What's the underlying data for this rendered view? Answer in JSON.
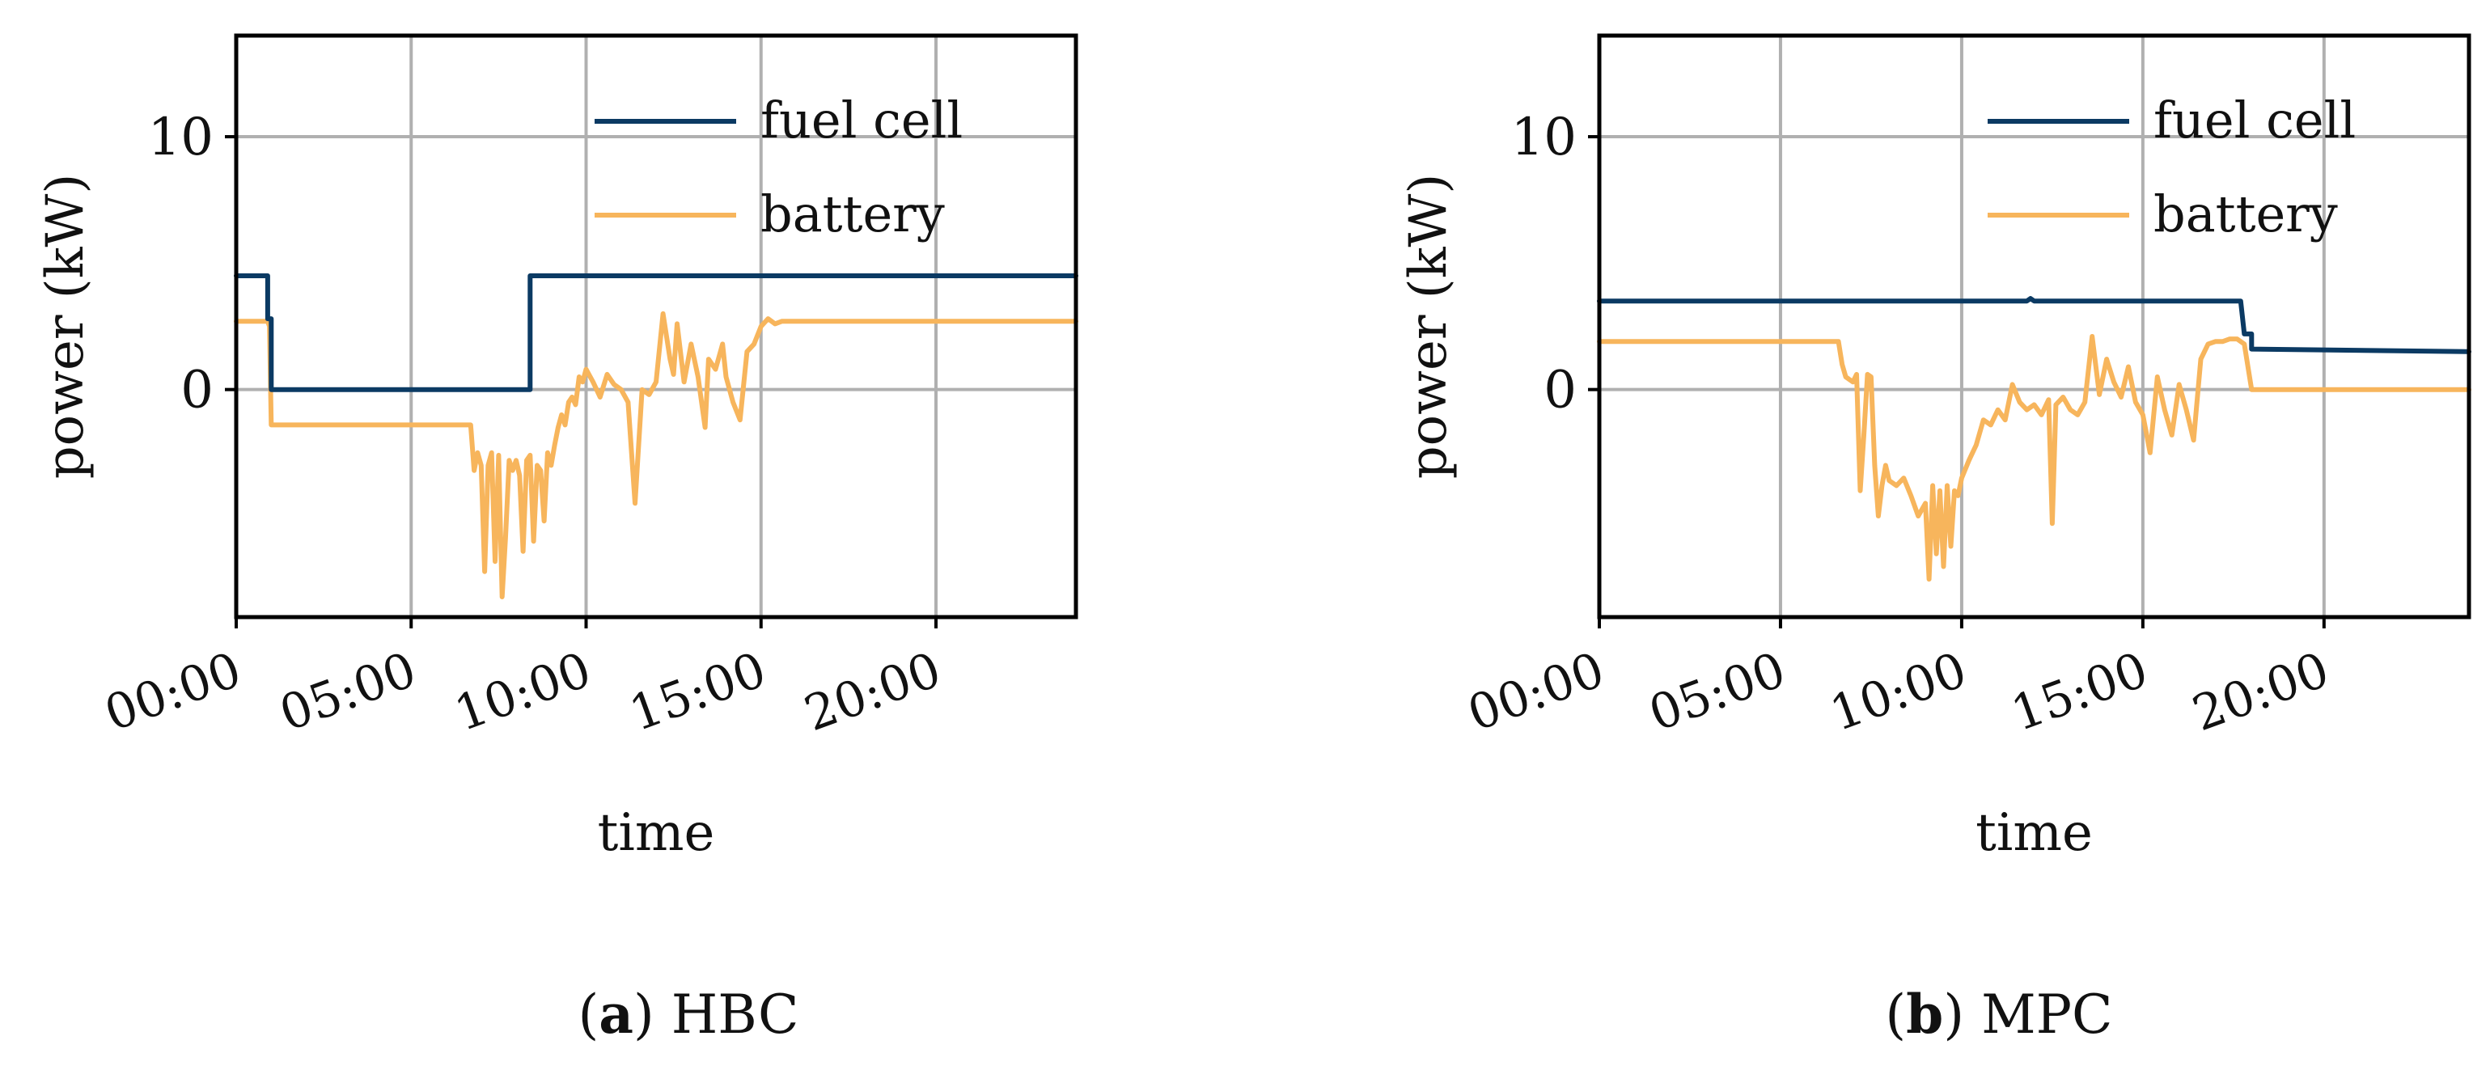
{
  "chart_data": [
    {
      "type": "line",
      "caption_letter": "a",
      "caption_text": "HBC",
      "xlabel": "time",
      "ylabel": "power (kW)",
      "ylim": [
        -9,
        14
      ],
      "y_ticks": [
        0,
        10
      ],
      "x_range_hours": [
        0,
        24
      ],
      "x_ticks": [
        "00:00",
        "05:00",
        "10:00",
        "15:00",
        "20:00"
      ],
      "x_tick_hours": [
        0,
        5,
        10,
        15,
        20
      ],
      "grid": true,
      "legend": "top-right",
      "colors": {
        "fuel cell": "#0b3a63",
        "battery": "#f7b55c"
      },
      "series": [
        {
          "name": "fuel cell",
          "x": [
            0,
            0.9,
            0.9,
            1.0,
            1.0,
            8.4,
            8.4,
            24
          ],
          "y": [
            4.5,
            4.5,
            2.8,
            2.8,
            0,
            0,
            4.5,
            4.5
          ]
        },
        {
          "name": "battery",
          "x": [
            0,
            0.9,
            0.95,
            1.0,
            6.7,
            6.8,
            6.9,
            7.0,
            7.1,
            7.2,
            7.3,
            7.4,
            7.5,
            7.6,
            7.7,
            7.8,
            7.9,
            8.0,
            8.1,
            8.2,
            8.3,
            8.4,
            8.5,
            8.6,
            8.7,
            8.8,
            8.9,
            9.0,
            9.1,
            9.2,
            9.3,
            9.4,
            9.5,
            9.6,
            9.7,
            9.8,
            9.9,
            10.0,
            10.2,
            10.4,
            10.6,
            10.8,
            11.0,
            11.2,
            11.4,
            11.6,
            11.8,
            12.0,
            12.2,
            12.4,
            12.5,
            12.6,
            12.8,
            13.0,
            13.2,
            13.4,
            13.5,
            13.7,
            13.9,
            14.0,
            14.2,
            14.4,
            14.6,
            14.8,
            15.0,
            15.2,
            15.4,
            15.6,
            15.8,
            16.0,
            16.2,
            16.4,
            16.6,
            16.8,
            17.0,
            17.2,
            24
          ],
          "y": [
            2.7,
            2.7,
            2.5,
            -1.4,
            -1.4,
            -3.2,
            -2.5,
            -3.0,
            -7.2,
            -3.0,
            -2.5,
            -6.8,
            -2.6,
            -8.2,
            -5.8,
            -2.8,
            -3.2,
            -2.8,
            -3.4,
            -6.4,
            -2.8,
            -2.6,
            -6.0,
            -3.0,
            -3.2,
            -5.2,
            -2.5,
            -3.0,
            -2.2,
            -1.5,
            -1.0,
            -1.4,
            -0.5,
            -0.3,
            -0.6,
            0.5,
            0.3,
            0.8,
            0.3,
            -0.3,
            0.6,
            0.2,
            0.0,
            -0.5,
            -4.5,
            0.0,
            -0.2,
            0.3,
            3.0,
            1.2,
            0.6,
            2.6,
            0.3,
            1.8,
            0.5,
            -1.5,
            1.2,
            0.8,
            1.8,
            0.5,
            -0.5,
            -1.2,
            1.5,
            1.8,
            2.5,
            2.8,
            2.6,
            2.7,
            2.7,
            2.7,
            2.7,
            2.7,
            2.7,
            2.7,
            2.7,
            2.7,
            2.7
          ]
        }
      ]
    },
    {
      "type": "line",
      "caption_letter": "b",
      "caption_text": "MPC",
      "xlabel": "time",
      "ylabel": "power (kW)",
      "ylim": [
        -9,
        14
      ],
      "y_ticks": [
        0,
        10
      ],
      "x_range_hours": [
        0,
        24
      ],
      "x_ticks": [
        "00:00",
        "05:00",
        "10:00",
        "15:00",
        "20:00"
      ],
      "x_tick_hours": [
        0,
        5,
        10,
        15,
        20
      ],
      "grid": true,
      "legend": "top-right",
      "colors": {
        "fuel cell": "#0b3a63",
        "battery": "#f7b55c"
      },
      "series": [
        {
          "name": "fuel cell",
          "x": [
            0,
            11.8,
            11.9,
            12.0,
            17.7,
            17.8,
            17.8,
            18.0,
            18.0,
            24
          ],
          "y": [
            3.5,
            3.5,
            3.6,
            3.5,
            3.5,
            2.2,
            2.2,
            2.2,
            1.6,
            1.5
          ],
          "note": ""
        },
        {
          "name": "battery",
          "x": [
            0,
            6.6,
            6.7,
            6.8,
            7.0,
            7.1,
            7.2,
            7.3,
            7.4,
            7.5,
            7.6,
            7.7,
            7.8,
            7.9,
            8.0,
            8.2,
            8.4,
            8.6,
            8.8,
            9.0,
            9.1,
            9.2,
            9.3,
            9.4,
            9.5,
            9.6,
            9.7,
            9.8,
            9.9,
            10.0,
            10.2,
            10.4,
            10.6,
            10.8,
            11.0,
            11.2,
            11.4,
            11.6,
            11.8,
            12.0,
            12.2,
            12.4,
            12.5,
            12.6,
            12.8,
            13.0,
            13.2,
            13.4,
            13.6,
            13.8,
            14.0,
            14.2,
            14.4,
            14.6,
            14.8,
            15.0,
            15.2,
            15.4,
            15.6,
            15.8,
            16.0,
            16.2,
            16.4,
            16.6,
            16.8,
            17.0,
            17.2,
            17.4,
            17.6,
            17.8,
            18.0,
            24
          ],
          "y": [
            1.9,
            1.9,
            1.0,
            0.5,
            0.3,
            0.6,
            -4.0,
            -1.8,
            0.6,
            0.5,
            -3.0,
            -5.0,
            -3.8,
            -3.0,
            -3.6,
            -3.8,
            -3.5,
            -4.2,
            -5.0,
            -4.5,
            -7.5,
            -3.8,
            -6.5,
            -4.0,
            -7.0,
            -3.8,
            -6.2,
            -4.0,
            -4.2,
            -3.5,
            -2.8,
            -2.2,
            -1.2,
            -1.4,
            -0.8,
            -1.2,
            0.2,
            -0.5,
            -0.8,
            -0.6,
            -1.0,
            -0.4,
            -5.3,
            -0.6,
            -0.3,
            -0.8,
            -1.0,
            -0.5,
            2.1,
            -0.2,
            1.2,
            0.3,
            -0.3,
            0.9,
            -0.5,
            -1.0,
            -2.5,
            0.5,
            -0.8,
            -1.8,
            0.2,
            -0.8,
            -2.0,
            1.2,
            1.8,
            1.9,
            1.9,
            2.0,
            2.0,
            1.8,
            0.0,
            0.0
          ]
        }
      ]
    }
  ]
}
